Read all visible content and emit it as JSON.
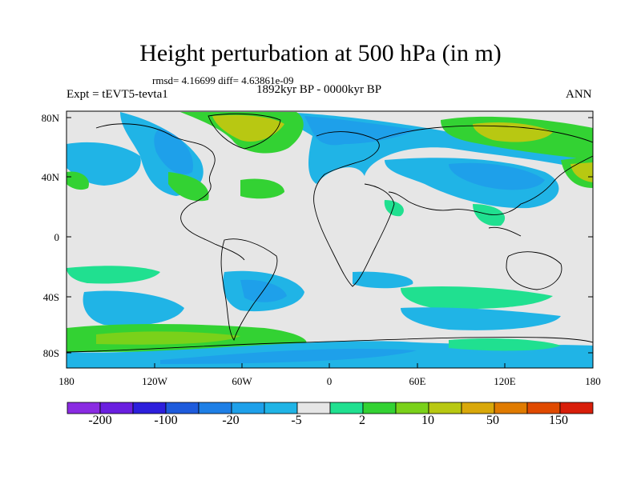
{
  "title": "Height perturbation at 500 hPa (in m)",
  "stats": "rmsd= 4.16699 diff= 4.63861e-09",
  "period": "1892kyr BP - 0000kyr BP",
  "experiment": "Expt = tEVT5-tevta1",
  "season": "ANN",
  "lat_labels": [
    "80N",
    "40N",
    "0",
    "40S",
    "80S"
  ],
  "lon_labels": [
    "180",
    "120W",
    "60W",
    "0",
    "60E",
    "120E",
    "180"
  ],
  "colorbar_labels": [
    "-200",
    "-100",
    "-20",
    "-5",
    "2",
    "10",
    "50",
    "150"
  ],
  "colors": {
    "background_field": "#e6e6e6",
    "bins": [
      "#8a2be2",
      "#6a1fe0",
      "#2d1fdc",
      "#1e5bdc",
      "#1e7fe6",
      "#1ea0ea",
      "#20b4e6",
      "#e6e6e6",
      "#20e090",
      "#33d233",
      "#7ad11a",
      "#b8c812",
      "#d9a80a",
      "#e07b00",
      "#e04a00",
      "#d81e0a"
    ]
  }
}
